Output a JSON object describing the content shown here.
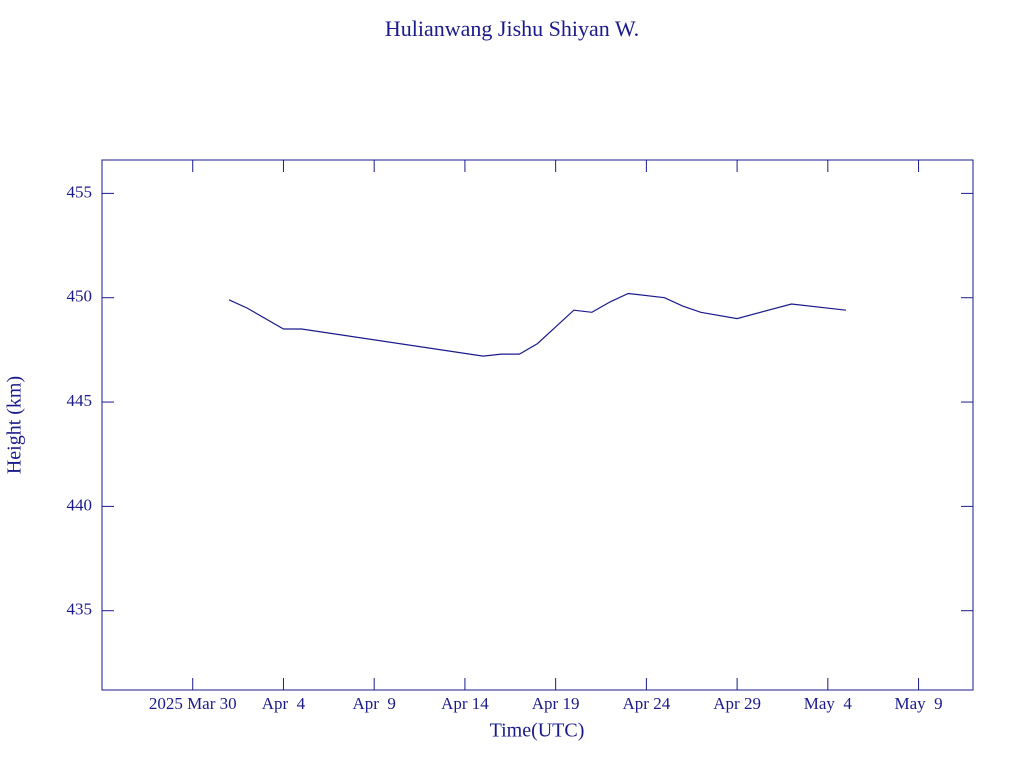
{
  "chart_data": {
    "type": "line",
    "title": "Hulianwang Jishu Shiyan W.",
    "x_label": "Time(UTC)",
    "y_label": "Height (km)",
    "color": "#1a1a8c",
    "x": [
      "2025-04-01",
      "2025-04-02",
      "2025-04-04",
      "2025-04-05",
      "2025-04-15",
      "2025-04-16",
      "2025-04-17",
      "2025-04-18",
      "2025-04-19",
      "2025-04-20",
      "2025-04-21",
      "2025-04-22",
      "2025-04-23",
      "2025-04-25",
      "2025-04-26",
      "2025-04-27",
      "2025-04-29",
      "2025-05-02",
      "2025-05-05"
    ],
    "values": [
      449.9,
      449.5,
      448.5,
      448.5,
      447.2,
      447.3,
      447.3,
      447.8,
      448.6,
      449.4,
      449.3,
      449.8,
      450.2,
      450.0,
      449.6,
      449.3,
      449.0,
      449.7,
      449.4
    ],
    "xlim": [
      "2025-03-25",
      "2025-05-12"
    ],
    "xticks": [
      {
        "value": "2025-03-30",
        "label": "2025 Mar 30"
      },
      {
        "value": "2025-04-04",
        "label": "Apr  4"
      },
      {
        "value": "2025-04-09",
        "label": "Apr  9"
      },
      {
        "value": "2025-04-14",
        "label": "Apr 14"
      },
      {
        "value": "2025-04-19",
        "label": "Apr 19"
      },
      {
        "value": "2025-04-24",
        "label": "Apr 24"
      },
      {
        "value": "2025-04-29",
        "label": "Apr 29"
      },
      {
        "value": "2025-05-04",
        "label": "May  4"
      },
      {
        "value": "2025-05-09",
        "label": "May  9"
      }
    ],
    "ylim": [
      431.2,
      456.6
    ],
    "yticks": [
      435,
      440,
      445,
      450,
      455
    ]
  }
}
